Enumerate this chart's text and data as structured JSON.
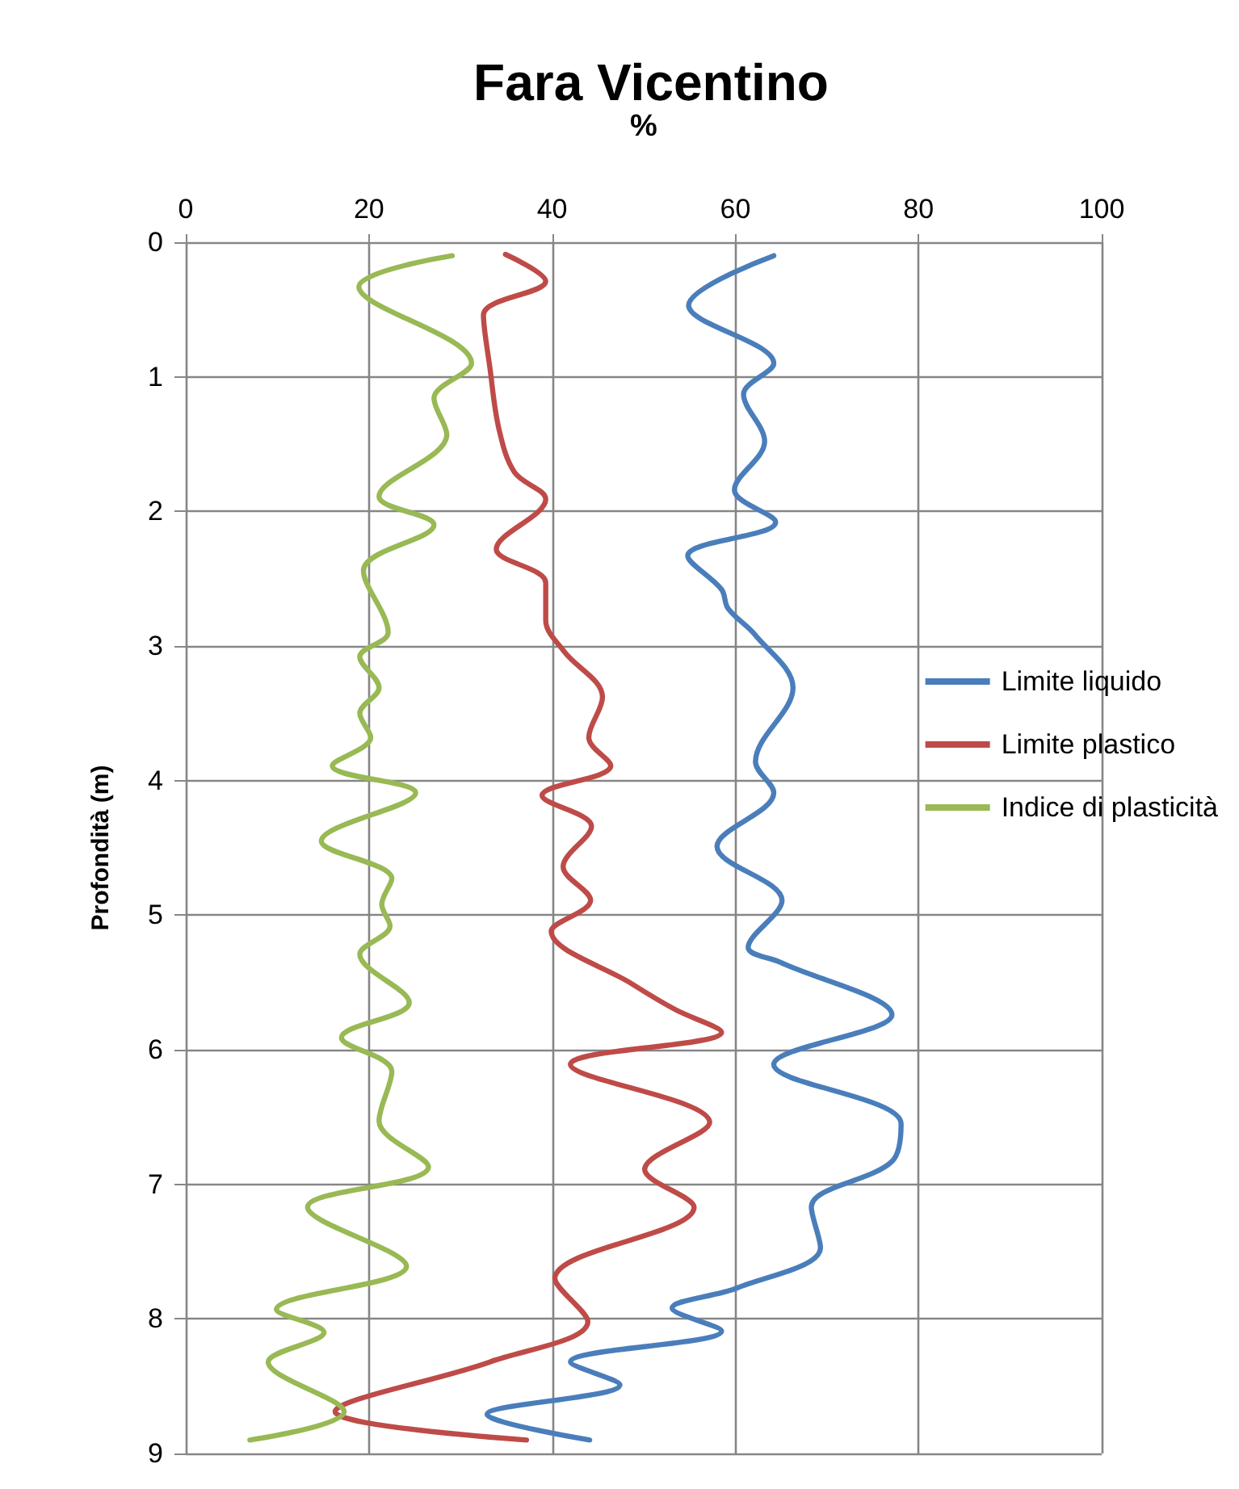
{
  "chart_data": {
    "type": "line",
    "title": "Fara Vicentino",
    "xlabel": "%",
    "ylabel": "Profondità (m)",
    "xlim": [
      0,
      100
    ],
    "xticks": [
      0,
      20,
      40,
      60,
      80,
      100
    ],
    "ylim": [
      9,
      0
    ],
    "yticks": [
      0,
      1,
      2,
      3,
      4,
      5,
      6,
      7,
      8,
      9
    ],
    "grid": true,
    "legend": "right",
    "marker": "none",
    "line_style": "solid",
    "series": [
      {
        "name": "Limite liquido",
        "color": "#4a7ebb",
        "x": [
          64.2,
          54.9,
          64.2,
          60.9,
          63.2,
          59.9,
          64.4,
          54.8,
          58.5,
          59.2,
          62.2,
          66.3,
          62.2,
          64.2,
          58.0,
          65.1,
          61.4,
          64.9,
          77.1,
          64.2,
          78.1,
          77.1,
          68.3,
          69.3,
          60.2,
          53.1,
          58.5,
          42.0,
          47.4,
          32.9,
          44.1
        ],
        "values": [
          0.1,
          0.47,
          0.9,
          1.13,
          1.48,
          1.84,
          2.08,
          2.33,
          2.58,
          2.72,
          2.92,
          3.31,
          3.86,
          4.09,
          4.49,
          4.89,
          5.24,
          5.35,
          5.74,
          6.11,
          6.55,
          6.83,
          7.17,
          7.47,
          7.77,
          7.92,
          8.09,
          8.32,
          8.49,
          8.71,
          8.9
        ]
      },
      {
        "name": "Limite plastico",
        "color": "#be4b48",
        "x": [
          34.9,
          39.3,
          32.5,
          33.2,
          34.2,
          35.9,
          39.3,
          33.9,
          39.3,
          39.3,
          41.3,
          45.5,
          44.0,
          46.4,
          38.9,
          44.3,
          41.2,
          44.2,
          39.9,
          48.7,
          53.4,
          58.5,
          42.0,
          57.2,
          50.1,
          55.5,
          40.3,
          43.9,
          33.2,
          16.3,
          37.2
        ],
        "values": [
          0.09,
          0.29,
          0.54,
          0.93,
          1.39,
          1.71,
          1.91,
          2.28,
          2.53,
          2.81,
          3.04,
          3.38,
          3.68,
          3.89,
          4.11,
          4.34,
          4.64,
          4.89,
          5.12,
          5.51,
          5.7,
          5.87,
          6.11,
          6.54,
          6.89,
          7.17,
          7.7,
          8.02,
          8.32,
          8.69,
          8.9
        ]
      },
      {
        "name": "Indice di plasticità",
        "color": "#98b954",
        "x": [
          29.1,
          18.9,
          31.2,
          27.1,
          28.5,
          21.1,
          27.1,
          19.4,
          22.1,
          19.0,
          21.1,
          19.0,
          20.2,
          16.0,
          25.1,
          14.8,
          22.5,
          21.4,
          22.3,
          19.0,
          24.4,
          17.0,
          22.5,
          21.1,
          26.5,
          13.3,
          24.1,
          9.9,
          15.1,
          9.0,
          17.3,
          7.0
        ],
        "values": [
          0.1,
          0.33,
          0.9,
          1.16,
          1.43,
          1.89,
          2.1,
          2.44,
          2.9,
          3.08,
          3.31,
          3.5,
          3.68,
          3.89,
          4.09,
          4.45,
          4.73,
          4.92,
          5.08,
          5.29,
          5.65,
          5.91,
          6.16,
          6.53,
          6.87,
          7.17,
          7.61,
          7.93,
          8.1,
          8.32,
          8.69,
          8.9
        ]
      }
    ]
  }
}
